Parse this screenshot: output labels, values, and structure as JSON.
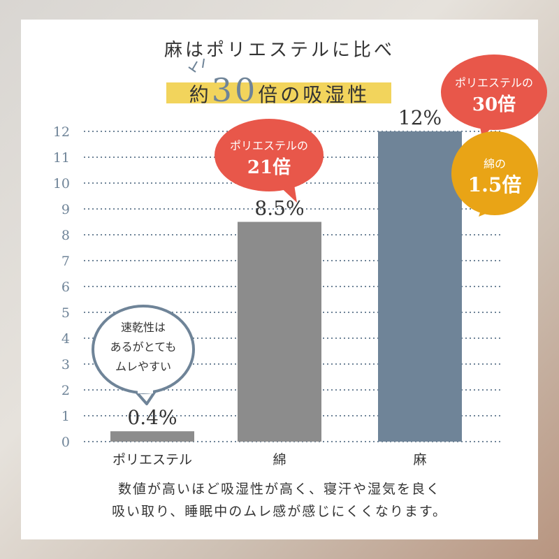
{
  "title": {
    "line1": "麻はポリエステルに比べ",
    "line2_pre": "約",
    "line2_num": "30",
    "line2_post": "倍の吸湿性"
  },
  "chart_data": {
    "type": "bar",
    "categories": [
      "ポリエステル",
      "綿",
      "麻"
    ],
    "values": [
      0.4,
      8.5,
      12
    ],
    "data_labels": [
      "0.4%",
      "8.5%",
      "12%"
    ],
    "yticks": [
      0,
      1,
      2,
      3,
      4,
      5,
      6,
      7,
      8,
      9,
      10,
      11,
      12
    ],
    "ylim": [
      0,
      12
    ],
    "grid": true,
    "bar_colors": [
      "#8c8c8c",
      "#8c8c8c",
      "#6f8498"
    ]
  },
  "callouts": {
    "cotton": {
      "line1": "ポリエステルの",
      "line2": "21倍",
      "color": "#e8574a"
    },
    "linen_poly": {
      "line1": "ポリエステルの",
      "line2": "30倍",
      "color": "#e8574a"
    },
    "linen_cotton": {
      "line1": "綿の",
      "line2": "1.5倍",
      "color": "#e9a416"
    },
    "polyester": {
      "lines": [
        "速乾性は",
        "あるがとても",
        "ムレやすい"
      ],
      "color": "#6f8498"
    }
  },
  "note": {
    "line1": "数値が高いほど吸湿性が高く、寝汗や湿気を良く",
    "line2": "吸い取り、睡眠中のムレ感が感じにくくなります。"
  },
  "colors": {
    "highlight": "#f2d45c",
    "accent": "#6f8498",
    "tick": "#6f8498"
  }
}
